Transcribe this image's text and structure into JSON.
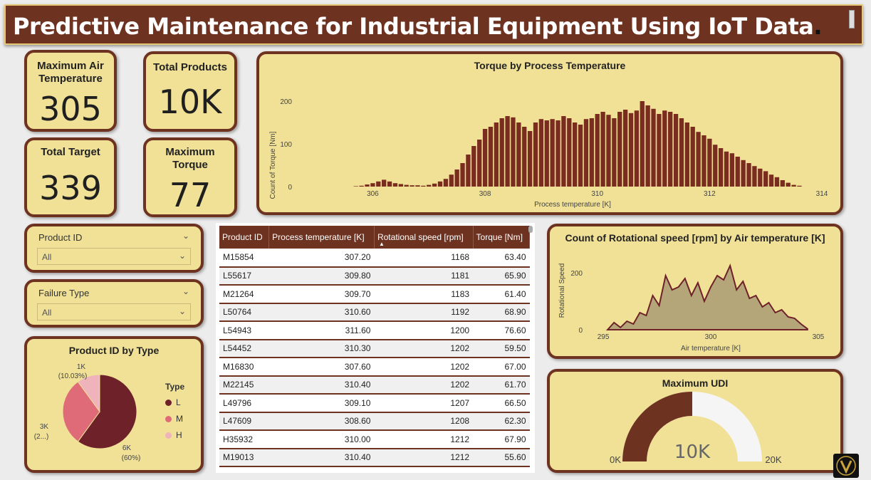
{
  "header": {
    "title": "Predictive Maintenance for Industrial Equipment Using IoT Data",
    "dot": "."
  },
  "kpis": {
    "max_air_temp": {
      "label": "Maximum Air Temperature",
      "value": "305"
    },
    "total_products": {
      "label": "Total Products",
      "value": "10K"
    },
    "total_target": {
      "label": "Total Target",
      "value": "339"
    },
    "max_torque": {
      "label": "Maximum Torque",
      "value": "77"
    }
  },
  "slicers": {
    "product_id": {
      "label": "Product ID",
      "value": "All"
    },
    "failure_type": {
      "label": "Failure Type",
      "value": "All"
    }
  },
  "colors": {
    "accent": "#6e3221",
    "card": "#f0e197",
    "pie_L": "#6e2129",
    "pie_M": "#e06b78",
    "pie_H": "#efb3bb",
    "area_fill": "#b5a67a"
  },
  "pie": {
    "title": "Product ID by Type",
    "legend_title": "Type",
    "labels": {
      "h": "1K",
      "h_pct": "(10.03%)",
      "m": "3K",
      "m_pct": "(2...)",
      "l": "6K",
      "l_pct": "(60%)"
    },
    "chart_data": {
      "type": "pie",
      "categories": [
        "L",
        "M",
        "H"
      ],
      "values": [
        60,
        29.97,
        10.03
      ]
    }
  },
  "table": {
    "columns": [
      "Product ID",
      "Process temperature [K]",
      "Rotational speed [rpm]",
      "Torque [Nm]"
    ],
    "rows": [
      [
        "M15854",
        "307.20",
        "1168",
        "63.40"
      ],
      [
        "L55617",
        "309.80",
        "1181",
        "65.90"
      ],
      [
        "M21264",
        "309.70",
        "1183",
        "61.40"
      ],
      [
        "L50764",
        "310.60",
        "1192",
        "68.90"
      ],
      [
        "L54943",
        "311.60",
        "1200",
        "76.60"
      ],
      [
        "L54452",
        "310.30",
        "1202",
        "59.50"
      ],
      [
        "M16830",
        "307.60",
        "1202",
        "67.00"
      ],
      [
        "M22145",
        "310.40",
        "1202",
        "61.70"
      ],
      [
        "L49796",
        "309.10",
        "1207",
        "66.50"
      ],
      [
        "L47609",
        "308.60",
        "1208",
        "62.30"
      ],
      [
        "H35932",
        "310.00",
        "1212",
        "67.90"
      ],
      [
        "M19013",
        "310.40",
        "1212",
        "55.60"
      ]
    ]
  },
  "torque_chart": {
    "title": "Torque by Process Temperature",
    "xlabel": "Process temperature [K]",
    "ylabel": "Count of Torque [Nm]",
    "chart_data": {
      "type": "bar",
      "xlim": [
        305.5,
        314
      ],
      "ylim": [
        0,
        200
      ],
      "xticks": [
        "306",
        "308",
        "310",
        "312",
        "314"
      ],
      "yticks": [
        "0",
        "100",
        "200"
      ],
      "x_start": 305.7,
      "x_step": 0.1,
      "values": [
        1,
        2,
        5,
        8,
        12,
        16,
        12,
        8,
        6,
        4,
        3,
        3,
        2,
        4,
        7,
        12,
        18,
        28,
        40,
        55,
        75,
        95,
        110,
        135,
        140,
        150,
        160,
        165,
        162,
        150,
        140,
        130,
        150,
        158,
        155,
        158,
        155,
        165,
        160,
        150,
        145,
        158,
        160,
        170,
        175,
        168,
        160,
        175,
        180,
        172,
        178,
        200,
        190,
        182,
        170,
        178,
        175,
        170,
        160,
        150,
        140,
        128,
        120,
        112,
        98,
        90,
        82,
        78,
        70,
        62,
        55,
        48,
        42,
        36,
        28,
        22,
        15,
        9,
        4,
        2
      ]
    }
  },
  "rot_chart": {
    "title": "Count of Rotational speed [rpm] by Air temperature [K]",
    "xlabel": "Air temperature [K]",
    "ylabel": "Rotational Speed",
    "chart_data": {
      "type": "area",
      "xlim": [
        294.5,
        305.5
      ],
      "ylim": [
        0,
        250
      ],
      "xticks": [
        "295",
        "300",
        "305"
      ],
      "yticks": [
        "0",
        "200"
      ],
      "x": [
        295.2,
        295.5,
        295.8,
        296.1,
        296.4,
        296.7,
        297,
        297.3,
        297.6,
        297.9,
        298.2,
        298.5,
        298.8,
        299.1,
        299.4,
        299.7,
        300,
        300.3,
        300.6,
        300.9,
        301.2,
        301.5,
        301.8,
        302.1,
        302.4,
        302.7,
        303,
        303.3,
        303.6,
        303.9,
        304.2,
        304.5
      ],
      "y": [
        0,
        25,
        8,
        30,
        20,
        60,
        50,
        120,
        85,
        190,
        140,
        150,
        180,
        120,
        165,
        100,
        150,
        190,
        175,
        225,
        140,
        170,
        110,
        120,
        80,
        95,
        60,
        70,
        45,
        40,
        20,
        3
      ]
    }
  },
  "gauge": {
    "title": "Maximum UDI",
    "value": "10K",
    "min": "0K",
    "max": "20K",
    "fraction": 0.5
  }
}
